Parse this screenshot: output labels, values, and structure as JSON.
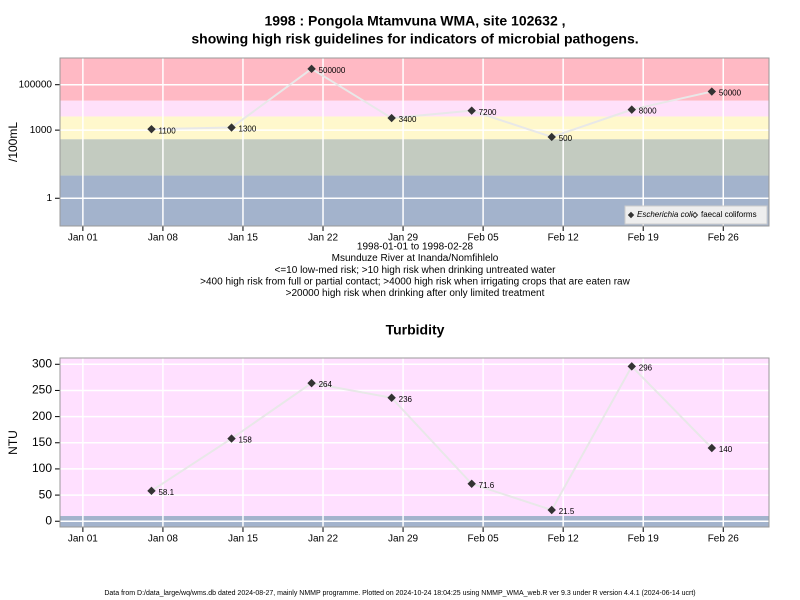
{
  "chart_data": [
    {
      "type": "line",
      "log_y": true,
      "title": [
        "1998 : Pongola Mtamvuna WMA, site 102632 ,",
        "showing high risk guidelines for indicators of microbial pathogens."
      ],
      "y_label": "/100mL",
      "annotations": [
        "1998-01-01 to 1998-02-28",
        "Msunduze River at Inanda/Nomfihlelo",
        "<=10 low-med risk; >10 high risk when drinking untreated water",
        ">400 high risk from full or partial contact; >4000 high risk when irrigating crops that are eaten raw",
        ">20000 high risk when drinking after only limited treatment"
      ],
      "x": [
        "1998-01-07",
        "1998-01-14",
        "1998-01-21",
        "1998-01-28",
        "1998-02-04",
        "1998-02-11",
        "1998-02-18",
        "1998-02-25"
      ],
      "series": [
        {
          "name": "Escherichia coli",
          "marker": "diamond-filled",
          "color": "#333333",
          "values": [
            1100,
            1300,
            500000,
            3400,
            7200,
            500,
            8000,
            50000
          ]
        },
        {
          "name": "faecal coliforms",
          "marker": "diamond-open",
          "color": "#333333",
          "values": [
            null,
            null,
            null,
            null,
            null,
            null,
            null,
            null
          ]
        }
      ],
      "line_color": "#e8e8e8",
      "thresholds": [
        10,
        400,
        4000,
        20000
      ],
      "band_colors": [
        "#a3b3cc",
        "#c3cbc0",
        "#fff8cc",
        "#ffe0fa",
        "#ffb9c4"
      ],
      "xlim": [
        "1997-12-30",
        "1998-03-02"
      ],
      "xticks": [
        {
          "value": "1998-01-01",
          "label": "Jan 01"
        },
        {
          "value": "1998-01-08",
          "label": "Jan 08"
        },
        {
          "value": "1998-01-15",
          "label": "Jan 15"
        },
        {
          "value": "1998-01-22",
          "label": "Jan 22"
        },
        {
          "value": "1998-01-29",
          "label": "Jan 29"
        },
        {
          "value": "1998-02-05",
          "label": "Feb 05"
        },
        {
          "value": "1998-02-12",
          "label": "Feb 12"
        },
        {
          "value": "1998-02-19",
          "label": "Feb 19"
        },
        {
          "value": "1998-02-26",
          "label": "Feb 26"
        }
      ],
      "ylim": [
        0.06,
        1500000
      ],
      "yticks": [
        1,
        1000,
        100000
      ],
      "grid": true,
      "legend": "bottom-right"
    },
    {
      "type": "line",
      "log_y": false,
      "title": [
        "Turbidity"
      ],
      "y_label": "NTU",
      "x": [
        "1998-01-07",
        "1998-01-14",
        "1998-01-21",
        "1998-01-28",
        "1998-02-04",
        "1998-02-11",
        "1998-02-18",
        "1998-02-25"
      ],
      "series": [
        {
          "name": "Turbidity",
          "marker": "diamond-filled",
          "color": "#333333",
          "values": [
            58.1,
            158,
            264,
            236,
            71.6,
            21.5,
            296,
            140
          ]
        }
      ],
      "line_color": "#e8e8e8",
      "thresholds": [
        10
      ],
      "band_colors": [
        "#a3b3cc",
        "#ffe0ff"
      ],
      "xlim": [
        "1997-12-30",
        "1998-03-02"
      ],
      "xticks": [
        {
          "value": "1998-01-01",
          "label": "Jan 01"
        },
        {
          "value": "1998-01-08",
          "label": "Jan 08"
        },
        {
          "value": "1998-01-15",
          "label": "Jan 15"
        },
        {
          "value": "1998-01-22",
          "label": "Jan 22"
        },
        {
          "value": "1998-01-29",
          "label": "Jan 29"
        },
        {
          "value": "1998-02-05",
          "label": "Feb 05"
        },
        {
          "value": "1998-02-12",
          "label": "Feb 12"
        },
        {
          "value": "1998-02-19",
          "label": "Feb 19"
        },
        {
          "value": "1998-02-26",
          "label": "Feb 26"
        }
      ],
      "ylim": [
        -11,
        312
      ],
      "yticks": [
        0,
        50,
        100,
        150,
        200,
        250,
        300
      ],
      "grid": true
    }
  ],
  "footer": "Data from D:/data_large/wq/wms.db dated 2024-08-27, mainly NMMP programme. Plotted on 2024-10-24 18:04:25 using NMMP_WMA_web.R ver 9.3 under R version 4.4.1 (2024-06-14 ucrt)"
}
